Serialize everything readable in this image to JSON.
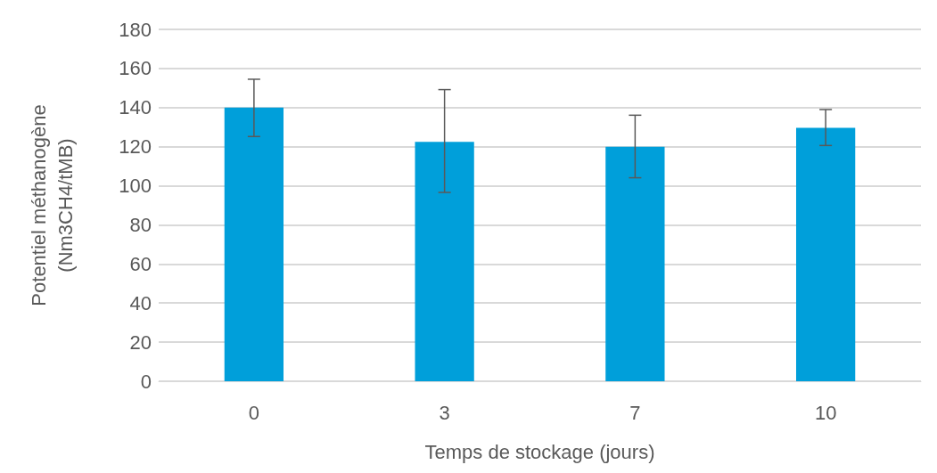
{
  "chart_data": {
    "type": "bar",
    "xlabel": "Temps de stockage (jours)",
    "ylabel": "Potentiel méthanogène\n(Nm3CH4/tMB)",
    "categories": [
      "0",
      "3",
      "7",
      "10"
    ],
    "values": [
      140,
      122.5,
      120,
      129.7
    ],
    "errors": [
      [
        125.2,
        154.5
      ],
      [
        96.6,
        149.2
      ],
      [
        104.1,
        136.1
      ],
      [
        120.6,
        139
      ]
    ],
    "color": "#009fda",
    "ylim": [
      0,
      180
    ],
    "yticks": [
      0,
      20,
      40,
      60,
      80,
      100,
      120,
      140,
      160,
      180
    ],
    "grid": "y"
  }
}
